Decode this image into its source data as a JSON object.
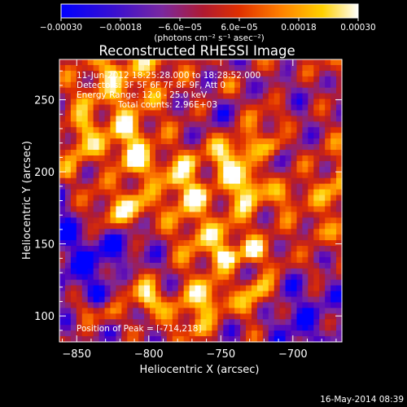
{
  "chart_data": {
    "type": "heatmap",
    "title": "Reconstructed RHESSI Image",
    "xlabel": "Heliocentric X (arcsec)",
    "ylabel": "Heliocentric Y (arcsec)",
    "xlim": [
      -862,
      -666
    ],
    "ylim": [
      82,
      278
    ],
    "x_ticks": [
      -850,
      -800,
      -750,
      -700
    ],
    "x_tick_labels": [
      "−850",
      "−800",
      "−750",
      "−700"
    ],
    "y_ticks": [
      100,
      150,
      200,
      250
    ],
    "y_tick_labels": [
      "100",
      "150",
      "200",
      "250"
    ],
    "colorbar": {
      "range": [
        -0.0003,
        0.0003
      ],
      "tick_labels": [
        "−0.00030",
        "−0.00018",
        "−6.0e−05",
        "6.0e−05",
        "0.00018",
        "0.00030"
      ],
      "unit_label": "(photons cm⁻² s⁻¹ asec⁻²)",
      "colormap": [
        "#0000ff",
        "#5000c0",
        "#7a28a0",
        "#b01a30",
        "#e03000",
        "#ff8000",
        "#ffd000",
        "#ffffff"
      ]
    },
    "annotations": {
      "time_range": "11-Jun-2012 18:25:28.000 to 18:28:52.000",
      "detectors": "Detectors: 3F 5F 6F 7F 8F 9F, Att 0",
      "energy_range": "Energy Range: 12.0 - 25.0 keV",
      "total_counts": "Total counts: 2.96E+03",
      "peak": "Position of Peak = [-714,218]"
    },
    "peak_position": [
      -714,
      218
    ],
    "grid": false
  },
  "footer": {
    "date": "16-May-2014 08:39"
  }
}
